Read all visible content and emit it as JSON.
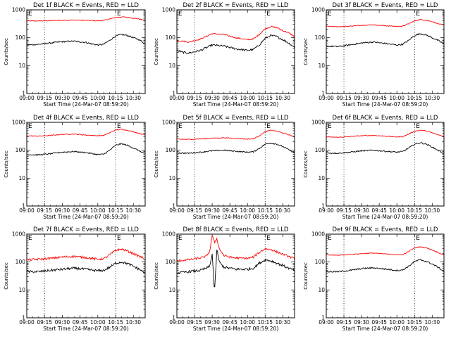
{
  "colors": {
    "events": "#000000",
    "lld": "#ff0000",
    "background": "#ffffff"
  },
  "chart_data": [
    {
      "type": "line",
      "title": "Det 1f BLACK = Events, RED = LLD",
      "xlabel": "Start Time (24-Mar-07 08:59:20)",
      "ylabel": "Counts/sec",
      "x_ticks": [
        "09:00",
        "09:15",
        "09:30",
        "09:45",
        "10:00",
        "10:15",
        "10:30"
      ],
      "y_ticks": [
        "1",
        "10",
        "100",
        "1000"
      ],
      "ylim": [
        1,
        1000
      ],
      "yscale": "log",
      "x_range_minutes": [
        0,
        100
      ],
      "vlines_minutes": [
        15,
        75
      ],
      "event_marks": [
        {
          "x": 0,
          "label": "E"
        },
        {
          "x": 75,
          "label": "E"
        }
      ],
      "series": [
        {
          "color": "#ff0000",
          "noise": 0.03,
          "x": [
            0,
            10,
            20,
            30,
            40,
            50,
            55,
            60,
            65,
            70,
            75,
            80,
            85,
            90,
            95,
            100
          ],
          "y": [
            400,
            400,
            410,
            420,
            430,
            420,
            410,
            405,
            420,
            470,
            530,
            560,
            540,
            500,
            470,
            420
          ]
        },
        {
          "color": "#000000",
          "noise": 0.06,
          "x": [
            0,
            10,
            20,
            30,
            40,
            50,
            55,
            60,
            65,
            70,
            75,
            80,
            85,
            90,
            95,
            100
          ],
          "y": [
            55,
            58,
            65,
            72,
            75,
            68,
            60,
            55,
            58,
            80,
            115,
            130,
            120,
            100,
            85,
            60
          ]
        }
      ]
    },
    {
      "type": "line",
      "title": "Det 2f BLACK = Events, RED = LLD",
      "xlabel": "Start Time (24-Mar-07 08:59:20)",
      "ylabel": "Counts/sec",
      "x_ticks": [
        "09:00",
        "09:15",
        "09:30",
        "09:45",
        "10:00",
        "10:15",
        "10:30"
      ],
      "y_ticks": [
        "1",
        "10",
        "100",
        "1000"
      ],
      "ylim": [
        1,
        1000
      ],
      "yscale": "log",
      "x_range_minutes": [
        0,
        100
      ],
      "vlines_minutes": [
        15,
        75
      ],
      "event_marks": [
        {
          "x": 0,
          "label": "E"
        },
        {
          "x": 75,
          "label": "E"
        }
      ],
      "series": [
        {
          "color": "#ff0000",
          "noise": 0.05,
          "x": [
            0,
            5,
            10,
            20,
            30,
            40,
            50,
            60,
            65,
            70,
            75,
            80,
            85,
            90,
            95,
            100
          ],
          "y": [
            80,
            75,
            70,
            90,
            140,
            130,
            100,
            85,
            90,
            130,
            210,
            250,
            230,
            180,
            150,
            110
          ]
        },
        {
          "color": "#000000",
          "noise": 0.08,
          "x": [
            0,
            5,
            10,
            20,
            30,
            40,
            50,
            60,
            65,
            70,
            75,
            80,
            85,
            90,
            95,
            100
          ],
          "y": [
            35,
            30,
            28,
            35,
            55,
            50,
            40,
            35,
            38,
            55,
            95,
            120,
            110,
            85,
            65,
            45
          ]
        }
      ]
    },
    {
      "type": "line",
      "title": "Det 3f BLACK = Events, RED = LLD",
      "xlabel": "Start Time (24-Mar-07 08:59:20)",
      "ylabel": "Counts/sec",
      "x_ticks": [
        "09:00",
        "09:15",
        "09:30",
        "09:45",
        "10:00",
        "10:15",
        "10:30"
      ],
      "y_ticks": [
        "1",
        "10",
        "100",
        "1000"
      ],
      "ylim": [
        1,
        1000
      ],
      "yscale": "log",
      "x_range_minutes": [
        0,
        100
      ],
      "vlines_minutes": [
        15,
        75
      ],
      "event_marks": [
        {
          "x": 0,
          "label": "E"
        },
        {
          "x": 75,
          "label": "E"
        }
      ],
      "series": [
        {
          "color": "#ff0000",
          "noise": 0.03,
          "x": [
            0,
            10,
            20,
            30,
            40,
            50,
            60,
            65,
            70,
            75,
            80,
            85,
            90,
            95,
            100
          ],
          "y": [
            260,
            250,
            260,
            280,
            290,
            270,
            255,
            260,
            320,
            400,
            450,
            420,
            380,
            320,
            280
          ]
        },
        {
          "color": "#000000",
          "noise": 0.06,
          "x": [
            0,
            10,
            20,
            30,
            40,
            50,
            60,
            65,
            70,
            75,
            80,
            85,
            90,
            95,
            100
          ],
          "y": [
            50,
            48,
            55,
            65,
            70,
            62,
            55,
            58,
            80,
            120,
            140,
            125,
            100,
            80,
            60
          ]
        }
      ]
    },
    {
      "type": "line",
      "title": "Det 4f BLACK = Events, RED = LLD",
      "xlabel": "Start Time (24-Mar-07 08:59:20)",
      "ylabel": "Counts/sec",
      "x_ticks": [
        "09:00",
        "09:15",
        "09:30",
        "09:45",
        "10:00",
        "10:15",
        "10:30"
      ],
      "y_ticks": [
        "1",
        "10",
        "100",
        "1000"
      ],
      "ylim": [
        1,
        1000
      ],
      "yscale": "log",
      "x_range_minutes": [
        0,
        100
      ],
      "vlines_minutes": [
        15,
        75
      ],
      "event_marks": [
        {
          "x": 0,
          "label": "E"
        },
        {
          "x": 75,
          "label": "E"
        }
      ],
      "series": [
        {
          "color": "#ff0000",
          "noise": 0.03,
          "x": [
            0,
            10,
            20,
            30,
            40,
            50,
            60,
            65,
            70,
            75,
            80,
            85,
            90,
            95,
            100
          ],
          "y": [
            330,
            320,
            340,
            370,
            380,
            350,
            330,
            340,
            420,
            530,
            560,
            520,
            460,
            400,
            350
          ]
        },
        {
          "color": "#000000",
          "noise": 0.05,
          "x": [
            0,
            10,
            20,
            30,
            40,
            50,
            60,
            65,
            70,
            75,
            80,
            85,
            90,
            95,
            100
          ],
          "y": [
            70,
            68,
            75,
            85,
            90,
            82,
            70,
            72,
            100,
            150,
            170,
            150,
            120,
            95,
            75
          ]
        }
      ]
    },
    {
      "type": "line",
      "title": "Det 5f BLACK = Events, RED = LLD",
      "xlabel": "Start Time (24-Mar-07 08:59:20)",
      "ylabel": "Counts/sec",
      "x_ticks": [
        "09:00",
        "09:15",
        "09:30",
        "09:45",
        "10:00",
        "10:15",
        "10:30"
      ],
      "y_ticks": [
        "1",
        "10",
        "100",
        "1000"
      ],
      "ylim": [
        1,
        1000
      ],
      "yscale": "log",
      "x_range_minutes": [
        0,
        100
      ],
      "vlines_minutes": [
        15,
        75
      ],
      "event_marks": [
        {
          "x": 0,
          "label": "E"
        },
        {
          "x": 75,
          "label": "E"
        }
      ],
      "series": [
        {
          "color": "#ff0000",
          "noise": 0.03,
          "x": [
            0,
            10,
            20,
            30,
            40,
            50,
            60,
            65,
            70,
            75,
            80,
            85,
            90,
            95,
            100
          ],
          "y": [
            250,
            245,
            255,
            270,
            280,
            265,
            250,
            255,
            330,
            460,
            520,
            480,
            420,
            360,
            300
          ]
        },
        {
          "color": "#000000",
          "noise": 0.05,
          "x": [
            0,
            10,
            20,
            30,
            40,
            50,
            60,
            65,
            70,
            75,
            80,
            85,
            90,
            95,
            100
          ],
          "y": [
            80,
            78,
            85,
            95,
            100,
            92,
            85,
            88,
            115,
            165,
            180,
            165,
            135,
            105,
            80
          ]
        }
      ]
    },
    {
      "type": "line",
      "title": "Det 6f BLACK = Events, RED = LLD",
      "xlabel": "Start Time (24-Mar-07 08:59:20)",
      "ylabel": "Counts/sec",
      "x_ticks": [
        "09:00",
        "09:15",
        "09:30",
        "09:45",
        "10:00",
        "10:15",
        "10:30"
      ],
      "y_ticks": [
        "1",
        "10",
        "100",
        "1000"
      ],
      "ylim": [
        1,
        1000
      ],
      "yscale": "log",
      "x_range_minutes": [
        0,
        100
      ],
      "vlines_minutes": [
        15,
        75
      ],
      "event_marks": [
        {
          "x": 0,
          "label": "E"
        },
        {
          "x": 75,
          "label": "E"
        }
      ],
      "series": [
        {
          "color": "#ff0000",
          "noise": 0.03,
          "x": [
            0,
            10,
            20,
            30,
            40,
            50,
            60,
            65,
            70,
            75,
            80,
            85,
            90,
            95,
            100
          ],
          "y": [
            300,
            290,
            310,
            330,
            340,
            320,
            300,
            305,
            380,
            480,
            520,
            490,
            420,
            360,
            310
          ]
        },
        {
          "color": "#000000",
          "noise": 0.05,
          "x": [
            0,
            10,
            20,
            30,
            40,
            50,
            60,
            65,
            70,
            75,
            80,
            85,
            90,
            95,
            100
          ],
          "y": [
            80,
            78,
            85,
            95,
            100,
            92,
            85,
            90,
            120,
            165,
            185,
            165,
            130,
            100,
            75
          ]
        }
      ]
    },
    {
      "type": "line",
      "title": "Det 7f BLACK = Events, RED = LLD",
      "xlabel": "Start Time (24-Mar-07 08:59:20)",
      "ylabel": "Counts/sec",
      "x_ticks": [
        "09:00",
        "09:15",
        "09:30",
        "09:45",
        "10:00",
        "10:15",
        "10:30"
      ],
      "y_ticks": [
        "1",
        "10",
        "100",
        "1000"
      ],
      "ylim": [
        1,
        1000
      ],
      "yscale": "log",
      "x_range_minutes": [
        0,
        100
      ],
      "vlines_minutes": [
        15,
        75
      ],
      "event_marks": [
        {
          "x": 0,
          "label": "E"
        },
        {
          "x": 75,
          "label": "E"
        }
      ],
      "series": [
        {
          "color": "#ff0000",
          "noise": 0.09,
          "x": [
            0,
            10,
            20,
            30,
            40,
            50,
            60,
            65,
            70,
            75,
            80,
            85,
            90,
            95,
            100
          ],
          "y": [
            120,
            125,
            135,
            150,
            160,
            145,
            125,
            130,
            180,
            260,
            290,
            250,
            200,
            160,
            130
          ]
        },
        {
          "color": "#000000",
          "noise": 0.1,
          "x": [
            0,
            10,
            20,
            30,
            40,
            50,
            60,
            65,
            70,
            75,
            80,
            85,
            90,
            95,
            100
          ],
          "y": [
            45,
            45,
            50,
            55,
            60,
            55,
            48,
            50,
            65,
            90,
            100,
            88,
            70,
            55,
            40
          ]
        }
      ]
    },
    {
      "type": "line",
      "title": "Det 8f BLACK = Events, RED = LLD",
      "xlabel": "Start Time (24-Mar-07 08:59:20)",
      "ylabel": "Counts/sec",
      "x_ticks": [
        "09:00",
        "09:15",
        "09:30",
        "09:45",
        "10:00",
        "10:15",
        "10:30"
      ],
      "y_ticks": [
        "1",
        "10",
        "100",
        "1000"
      ],
      "ylim": [
        1,
        1000
      ],
      "yscale": "log",
      "x_range_minutes": [
        0,
        100
      ],
      "vlines_minutes": [
        15,
        75
      ],
      "event_marks": [
        {
          "x": 0,
          "label": "E"
        },
        {
          "x": 75,
          "label": "E"
        }
      ],
      "series": [
        {
          "color": "#ff0000",
          "noise": 0.08,
          "x": [
            0,
            10,
            20,
            25,
            28,
            30,
            32,
            34,
            36,
            40,
            45,
            50,
            60,
            65,
            70,
            75,
            80,
            85,
            90,
            95,
            100
          ],
          "y": [
            110,
            120,
            140,
            160,
            250,
            900,
            500,
            700,
            300,
            170,
            150,
            140,
            135,
            150,
            220,
            300,
            280,
            230,
            190,
            160,
            130
          ]
        },
        {
          "color": "#000000",
          "noise": 0.1,
          "x": [
            0,
            10,
            20,
            25,
            28,
            30,
            32,
            34,
            36,
            40,
            45,
            50,
            60,
            65,
            70,
            75,
            80,
            85,
            90,
            95,
            100
          ],
          "y": [
            40,
            45,
            50,
            60,
            70,
            200,
            8,
            300,
            100,
            65,
            60,
            55,
            55,
            60,
            90,
            120,
            110,
            90,
            75,
            60,
            50
          ]
        }
      ]
    },
    {
      "type": "line",
      "title": "Det 9f BLACK = Events, RED = LLD",
      "xlabel": "Start Time (24-Mar-07 08:59:20)",
      "ylabel": "Counts/sec",
      "x_ticks": [
        "09:00",
        "09:15",
        "09:30",
        "09:45",
        "10:00",
        "10:15",
        "10:30"
      ],
      "y_ticks": [
        "1",
        "10",
        "100",
        "1000"
      ],
      "ylim": [
        1,
        1000
      ],
      "yscale": "log",
      "x_range_minutes": [
        0,
        100
      ],
      "vlines_minutes": [
        15,
        75
      ],
      "event_marks": [
        {
          "x": 0,
          "label": "E"
        },
        {
          "x": 75,
          "label": "E"
        }
      ],
      "series": [
        {
          "color": "#ff0000",
          "noise": 0.03,
          "x": [
            0,
            10,
            20,
            30,
            40,
            50,
            60,
            65,
            70,
            75,
            80,
            85,
            90,
            95,
            100
          ],
          "y": [
            180,
            175,
            185,
            200,
            210,
            195,
            180,
            185,
            240,
            320,
            350,
            320,
            270,
            220,
            180
          ]
        },
        {
          "color": "#000000",
          "noise": 0.06,
          "x": [
            0,
            10,
            20,
            30,
            40,
            50,
            60,
            65,
            70,
            75,
            80,
            85,
            90,
            95,
            100
          ],
          "y": [
            45,
            45,
            50,
            58,
            62,
            56,
            50,
            52,
            70,
            105,
            120,
            105,
            85,
            65,
            45
          ]
        }
      ]
    }
  ]
}
